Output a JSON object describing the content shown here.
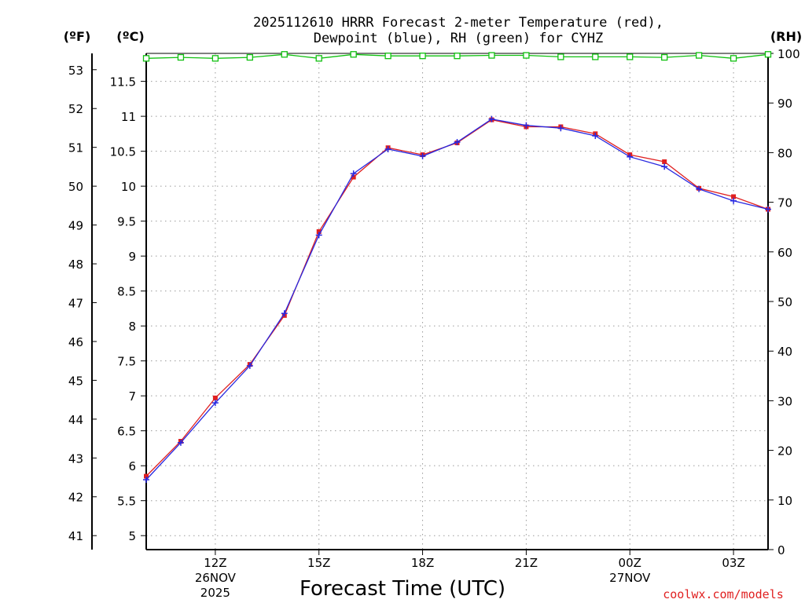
{
  "chart_data": {
    "type": "line",
    "title_line1": "2025112610 HRRR Forecast 2-meter Temperature (red),",
    "title_line2": "Dewpoint (blue), RH (green) for CYHZ",
    "xlabel": "Forecast Time (UTC)",
    "credit": "coolwx.com/models",
    "unit_f": "(ºF)",
    "unit_c": "(ºC)",
    "unit_rh": "(RH)",
    "x": [
      10,
      11,
      12,
      13,
      14,
      15,
      16,
      17,
      18,
      19,
      20,
      21,
      22,
      23,
      24,
      25,
      26,
      27,
      28
    ],
    "x_range": [
      10,
      28
    ],
    "x_ticks": [
      {
        "x": 12,
        "label": "12Z",
        "sub1": "26NOV",
        "sub2": "2025"
      },
      {
        "x": 15,
        "label": "15Z",
        "sub1": "",
        "sub2": ""
      },
      {
        "x": 18,
        "label": "18Z",
        "sub1": "",
        "sub2": ""
      },
      {
        "x": 21,
        "label": "21Z",
        "sub1": "",
        "sub2": ""
      },
      {
        "x": 24,
        "label": "00Z",
        "sub1": "27NOV",
        "sub2": ""
      },
      {
        "x": 27,
        "label": "03Z",
        "sub1": "",
        "sub2": ""
      }
    ],
    "ylim_c": [
      4.8,
      11.9
    ],
    "yticks_c": [
      "5",
      "5.5",
      "6",
      "6.5",
      "7",
      "7.5",
      "8",
      "8.5",
      "9",
      "9.5",
      "10",
      "10.5",
      "11",
      "11.5"
    ],
    "yticks_f": [
      "41",
      "42",
      "43",
      "44",
      "45",
      "46",
      "47",
      "48",
      "49",
      "50",
      "51",
      "52",
      "53"
    ],
    "ylim_rh": [
      0,
      100
    ],
    "yticks_rh": [
      "0",
      "10",
      "20",
      "30",
      "40",
      "50",
      "60",
      "70",
      "80",
      "90",
      "100"
    ],
    "series": [
      {
        "name": "Temperature",
        "color": "#e02020",
        "marker": "square",
        "values": [
          5.85,
          6.35,
          6.97,
          7.45,
          8.15,
          9.35,
          10.13,
          10.55,
          10.45,
          10.62,
          10.95,
          10.85,
          10.85,
          10.75,
          10.45,
          10.35,
          9.97,
          9.85,
          9.67
        ]
      },
      {
        "name": "Dewpoint",
        "color": "#2828e0",
        "marker": "plus",
        "values": [
          5.8,
          6.33,
          6.9,
          7.43,
          8.18,
          9.3,
          10.18,
          10.53,
          10.43,
          10.63,
          10.96,
          10.87,
          10.83,
          10.72,
          10.42,
          10.28,
          9.96,
          9.79,
          9.67
        ]
      },
      {
        "name": "RH",
        "color": "#10c010",
        "marker": "open-square",
        "values": [
          99.0,
          99.2,
          99.0,
          99.2,
          99.8,
          99.0,
          99.8,
          99.5,
          99.5,
          99.5,
          99.6,
          99.6,
          99.3,
          99.3,
          99.3,
          99.2,
          99.6,
          99.0,
          99.8
        ]
      }
    ]
  }
}
